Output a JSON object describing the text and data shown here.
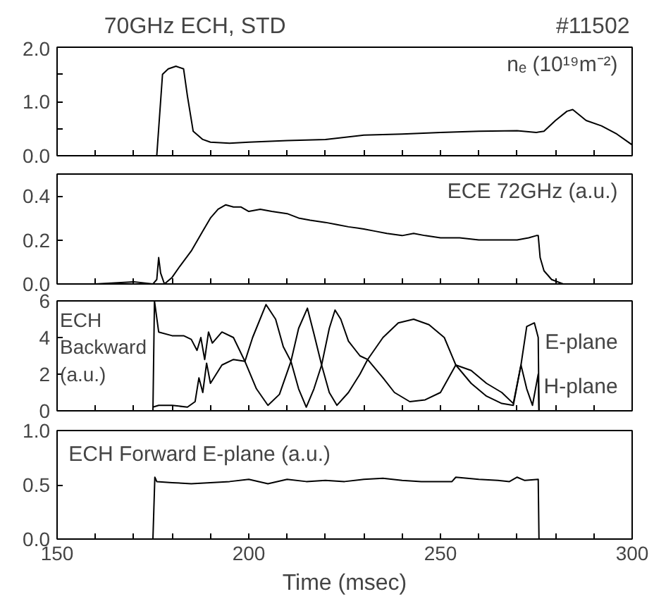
{
  "chart_data": [
    {
      "type": "line",
      "title": "70GHz ECH, STD",
      "annotations": [
        "#11502"
      ],
      "xlim": [
        150,
        300
      ],
      "ylim": [
        0,
        2.0
      ],
      "tick_labels": "y",
      "grid": false,
      "legend": "top right",
      "line_style": "solid",
      "xticks": [
        150,
        {
          "value": 160,
          "label": null
        },
        {
          "value": 170,
          "label": null
        },
        {
          "value": 180,
          "label": null
        },
        {
          "value": 190,
          "label": null
        },
        200,
        {
          "value": 210,
          "label": null
        },
        {
          "value": 220,
          "label": null
        },
        {
          "value": 230,
          "label": null
        },
        {
          "value": 240,
          "label": null
        },
        250,
        {
          "value": 260,
          "label": null
        },
        {
          "value": 270,
          "label": null
        },
        {
          "value": 280,
          "label": null
        },
        {
          "value": 290,
          "label": null
        },
        300
      ],
      "yticks": [
        {
          "value": 0,
          "label": "0.0"
        },
        {
          "value": 0.5,
          "label": null
        },
        {
          "value": 1.0,
          "label": "1.0"
        },
        {
          "value": 1.5,
          "label": null
        },
        {
          "value": 2.0,
          "label": "2.0"
        }
      ],
      "series": [
        {
          "name": "nₑ (10¹⁹m⁻²)",
          "color": "#000000",
          "x": [
            176,
            177.5,
            179,
            181,
            183,
            184,
            185.5,
            188,
            190,
            195,
            200,
            210,
            220,
            230,
            240,
            250,
            260,
            270,
            275,
            277,
            280,
            283,
            284.5,
            288,
            292,
            296,
            300
          ],
          "values": [
            0,
            1.5,
            1.6,
            1.65,
            1.6,
            1.1,
            0.45,
            0.3,
            0.25,
            0.23,
            0.25,
            0.28,
            0.3,
            0.38,
            0.4,
            0.43,
            0.45,
            0.46,
            0.43,
            0.45,
            0.65,
            0.82,
            0.85,
            0.65,
            0.55,
            0.4,
            0.2
          ]
        }
      ]
    },
    {
      "type": "line",
      "xlim": [
        150,
        300
      ],
      "ylim": [
        0,
        0.5
      ],
      "tick_labels": "y",
      "grid": false,
      "legend": "top right",
      "line_style": "solid",
      "xticks": [
        150,
        {
          "value": 160,
          "label": null
        },
        {
          "value": 170,
          "label": null
        },
        {
          "value": 180,
          "label": null
        },
        {
          "value": 190,
          "label": null
        },
        200,
        {
          "value": 210,
          "label": null
        },
        {
          "value": 220,
          "label": null
        },
        {
          "value": 230,
          "label": null
        },
        {
          "value": 240,
          "label": null
        },
        250,
        {
          "value": 260,
          "label": null
        },
        {
          "value": 270,
          "label": null
        },
        {
          "value": 280,
          "label": null
        },
        {
          "value": 290,
          "label": null
        },
        300
      ],
      "yticks": [
        {
          "value": 0,
          "label": "0.0"
        },
        {
          "value": 0.2,
          "label": "0.2"
        },
        {
          "value": 0.4,
          "label": "0.4"
        }
      ],
      "series": [
        {
          "name": "ECE 72GHz (a.u.)",
          "color": "#000000",
          "x": [
            150,
            160,
            170,
            175,
            176,
            176.5,
            177,
            178,
            180,
            182,
            185,
            188,
            190,
            192,
            194,
            196,
            198,
            200,
            203,
            206,
            210,
            213,
            216,
            220,
            223,
            226,
            230,
            233,
            236,
            240,
            243,
            246,
            250,
            255,
            260,
            265,
            270,
            273,
            275,
            275.5,
            276,
            277,
            279,
            282,
            290,
            300
          ],
          "values": [
            0.0,
            0.0,
            0.01,
            0.0,
            0.02,
            0.12,
            0.05,
            0.0,
            0.03,
            0.08,
            0.15,
            0.24,
            0.3,
            0.34,
            0.36,
            0.35,
            0.35,
            0.33,
            0.34,
            0.33,
            0.32,
            0.3,
            0.29,
            0.28,
            0.27,
            0.26,
            0.25,
            0.24,
            0.23,
            0.22,
            0.23,
            0.22,
            0.21,
            0.21,
            0.2,
            0.2,
            0.2,
            0.21,
            0.22,
            0.22,
            0.12,
            0.06,
            0.02,
            0.0,
            0.0,
            0.0
          ]
        }
      ]
    },
    {
      "type": "line",
      "ylabel": "ECH Backward (a.u.)",
      "xlim": [
        150,
        300
      ],
      "ylim": [
        0,
        6
      ],
      "tick_labels": "y",
      "grid": false,
      "legend": false,
      "line_style": "solid",
      "xticks": [
        150,
        {
          "value": 160,
          "label": null
        },
        {
          "value": 170,
          "label": null
        },
        {
          "value": 180,
          "label": null
        },
        {
          "value": 190,
          "label": null
        },
        200,
        {
          "value": 210,
          "label": null
        },
        {
          "value": 220,
          "label": null
        },
        {
          "value": 230,
          "label": null
        },
        {
          "value": 240,
          "label": null
        },
        250,
        {
          "value": 260,
          "label": null
        },
        {
          "value": 270,
          "label": null
        },
        {
          "value": 280,
          "label": null
        },
        {
          "value": 290,
          "label": null
        },
        300
      ],
      "yticks": [
        0,
        2,
        4,
        6
      ],
      "series": [
        {
          "name": "E-plane",
          "color": "#000000",
          "x": [
            175,
            175.4,
            176.5,
            180,
            183,
            185,
            186.5,
            187.5,
            188.5,
            189.5,
            190.5,
            193,
            196,
            199,
            202,
            205,
            208,
            211,
            213,
            215.3,
            217,
            219,
            221,
            223,
            226,
            229,
            231,
            235,
            239,
            243,
            247,
            251,
            254,
            258,
            262,
            266,
            269,
            271,
            272.5,
            274.5,
            275.5,
            275.7
          ],
          "values": [
            0,
            6,
            4.3,
            4.1,
            4.1,
            3.9,
            3.3,
            4.0,
            2.8,
            4.3,
            3.7,
            4.3,
            4.0,
            2.7,
            1.2,
            0.3,
            0.9,
            2.7,
            4.5,
            5.6,
            4.2,
            2.5,
            1.0,
            0.3,
            1.0,
            2.0,
            2.8,
            4.0,
            4.8,
            5.0,
            4.7,
            4.0,
            2.5,
            1.5,
            0.8,
            0.4,
            0.3,
            2.5,
            4.6,
            4.8,
            4.0,
            0
          ]
        },
        {
          "name": "H-plane",
          "color": "#000000",
          "x": [
            175,
            176.5,
            180,
            184,
            186,
            187,
            188,
            189,
            190,
            193,
            196,
            199,
            201,
            204.5,
            207,
            209,
            211,
            213,
            215,
            217,
            219,
            221,
            222.5,
            224,
            226,
            229,
            231,
            235,
            238,
            242,
            246,
            250,
            254,
            258,
            262,
            266,
            269,
            271,
            272.5,
            274,
            275.5,
            275.7
          ],
          "values": [
            0.2,
            0.3,
            0.3,
            0.2,
            0.5,
            1.8,
            1.0,
            2.6,
            1.5,
            2.5,
            2.8,
            2.7,
            4.0,
            5.8,
            5.0,
            3.5,
            2.7,
            1.2,
            0.2,
            1.2,
            2.5,
            4.5,
            5.5,
            5.0,
            3.8,
            3.0,
            2.8,
            1.8,
            1.0,
            0.5,
            0.6,
            1.0,
            2.5,
            2.2,
            1.5,
            1.0,
            0.4,
            2.5,
            1.2,
            0.3,
            2.0,
            0
          ]
        }
      ]
    },
    {
      "type": "line",
      "xlabel": "Time (msec)",
      "xlim": [
        150,
        300
      ],
      "ylim": [
        0,
        1.0
      ],
      "grid": false,
      "legend": "top left",
      "line_style": "solid",
      "xticks": [
        150,
        {
          "value": 160,
          "label": null
        },
        {
          "value": 170,
          "label": null
        },
        {
          "value": 180,
          "label": null
        },
        {
          "value": 190,
          "label": null
        },
        200,
        {
          "value": 210,
          "label": null
        },
        {
          "value": 220,
          "label": null
        },
        {
          "value": 230,
          "label": null
        },
        {
          "value": 240,
          "label": null
        },
        250,
        {
          "value": 260,
          "label": null
        },
        {
          "value": 270,
          "label": null
        },
        {
          "value": 280,
          "label": null
        },
        {
          "value": 290,
          "label": null
        },
        300
      ],
      "yticks": [
        {
          "value": 0,
          "label": "0.0"
        },
        {
          "value": 0.5,
          "label": "0.5"
        },
        {
          "value": 1.0,
          "label": "1.0"
        }
      ],
      "series": [
        {
          "name": "ECH Forward E-plane (a.u.)",
          "color": "#000000",
          "x": [
            150,
            175,
            175.5,
            176,
            180,
            185,
            190,
            195,
            200,
            205,
            210,
            215,
            220,
            225,
            230,
            235,
            240,
            245,
            250,
            253,
            254,
            260,
            265,
            268,
            270,
            272,
            275.5,
            275.7,
            280,
            300
          ],
          "values": [
            0,
            0,
            0.57,
            0.53,
            0.52,
            0.51,
            0.52,
            0.53,
            0.55,
            0.51,
            0.55,
            0.53,
            0.54,
            0.53,
            0.55,
            0.56,
            0.54,
            0.53,
            0.53,
            0.53,
            0.57,
            0.55,
            0.54,
            0.53,
            0.57,
            0.54,
            0.55,
            0,
            0,
            0
          ]
        }
      ]
    }
  ]
}
